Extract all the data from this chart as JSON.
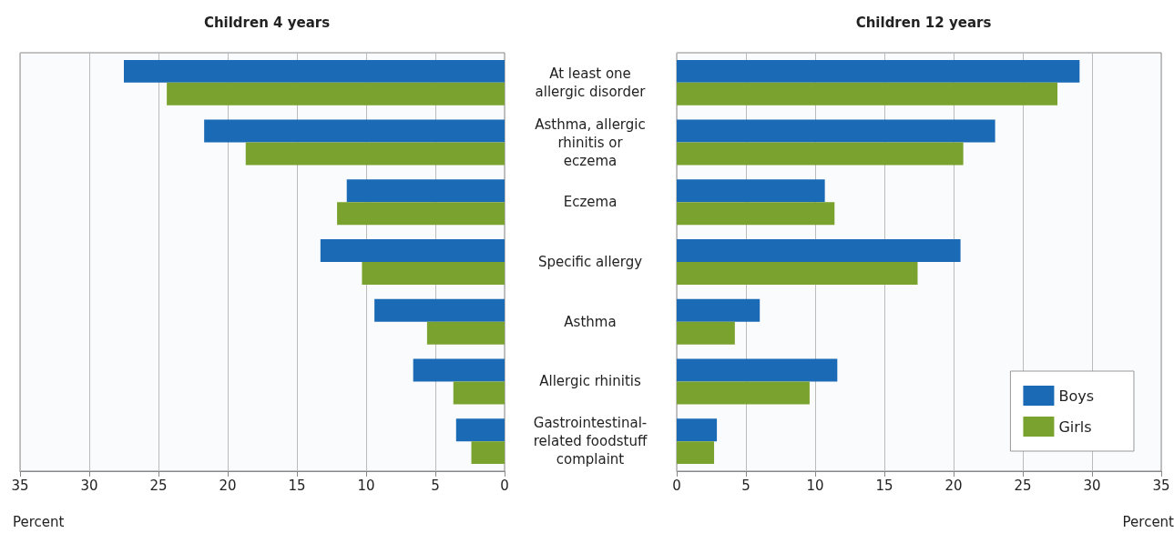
{
  "chart_data": [
    {
      "type": "bar",
      "orientation": "horizontal",
      "title": "Children 4 years",
      "xlabel": "Percent",
      "categories": [
        "At least one allergic disorder",
        "Asthma, allergic rhinitis or eczema",
        "Eczema",
        "Specific allergy",
        "Asthma",
        "Allergic rhinitis",
        "Gastrointestinal-related foodstuff complaint"
      ],
      "series": [
        {
          "color": "#1a6ab5",
          "values": [
            27.5,
            21.7,
            11.4,
            13.3,
            9.4,
            6.6,
            3.5
          ]
        },
        {
          "color": "#7aa22e",
          "values": [
            24.4,
            18.7,
            12.1,
            10.3,
            5.6,
            3.7,
            2.4
          ]
        }
      ],
      "xlim": [
        35,
        0
      ],
      "xticks": [
        35,
        30,
        25,
        20,
        15,
        10,
        5,
        0
      ],
      "grid": "x",
      "legend": false
    },
    {
      "type": "bar",
      "orientation": "horizontal",
      "title": "Children 12 years",
      "xlabel": "Percent",
      "categories": [
        null,
        null,
        null,
        null,
        null,
        null,
        null
      ],
      "series": [
        {
          "name": "Boys",
          "color": "#1a6ab5",
          "values": [
            29.1,
            23.0,
            10.7,
            20.5,
            6.0,
            11.6,
            2.9
          ]
        },
        {
          "name": "Girls",
          "color": "#7aa22e",
          "values": [
            27.5,
            20.7,
            11.4,
            17.4,
            4.2,
            9.6,
            2.7
          ]
        }
      ],
      "xlim": [
        0,
        35
      ],
      "xticks": [
        0,
        5,
        10,
        15,
        20,
        25,
        30,
        35
      ],
      "grid": "x",
      "legend": "bottom right",
      "tick_labels": "x"
    }
  ]
}
